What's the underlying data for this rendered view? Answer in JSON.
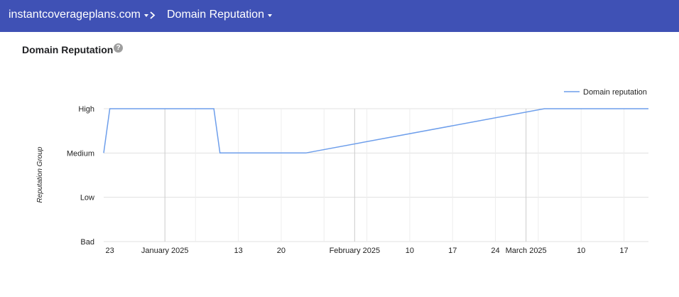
{
  "header": {
    "domain": "instantcoverageplans.com",
    "report": "Domain Reputation"
  },
  "page": {
    "title": "Domain Reputation",
    "help_glyph": "?"
  },
  "colors": {
    "header_bg": "#3f51b5",
    "series": "#6d9eeb",
    "grid": "#e0e0e0"
  },
  "icons": {
    "dropdown": "caret-down-icon",
    "separator": "chevron-right-icon",
    "help": "help-icon"
  },
  "chart_data": {
    "type": "line",
    "ylabel": "Reputation Group",
    "categories_y": [
      "Bad",
      "Low",
      "Medium",
      "High"
    ],
    "x_tick_labels": [
      "23",
      "January 2025",
      "13",
      "20",
      "February 2025",
      "10",
      "17",
      "24",
      "March 2025",
      "10",
      "17"
    ],
    "legend": {
      "position": "top-right",
      "entries": [
        "Domain reputation"
      ]
    },
    "series": [
      {
        "name": "Domain reputation",
        "points": [
          {
            "x": "2024-12-22",
            "y": "Medium"
          },
          {
            "x": "2024-12-23",
            "y": "High"
          },
          {
            "x": "2025-01-09",
            "y": "High"
          },
          {
            "x": "2025-01-10",
            "y": "Medium"
          },
          {
            "x": "2025-01-24",
            "y": "Medium"
          },
          {
            "x": "2025-03-04",
            "y": "High"
          },
          {
            "x": "2025-03-21",
            "y": "High"
          }
        ]
      }
    ]
  }
}
